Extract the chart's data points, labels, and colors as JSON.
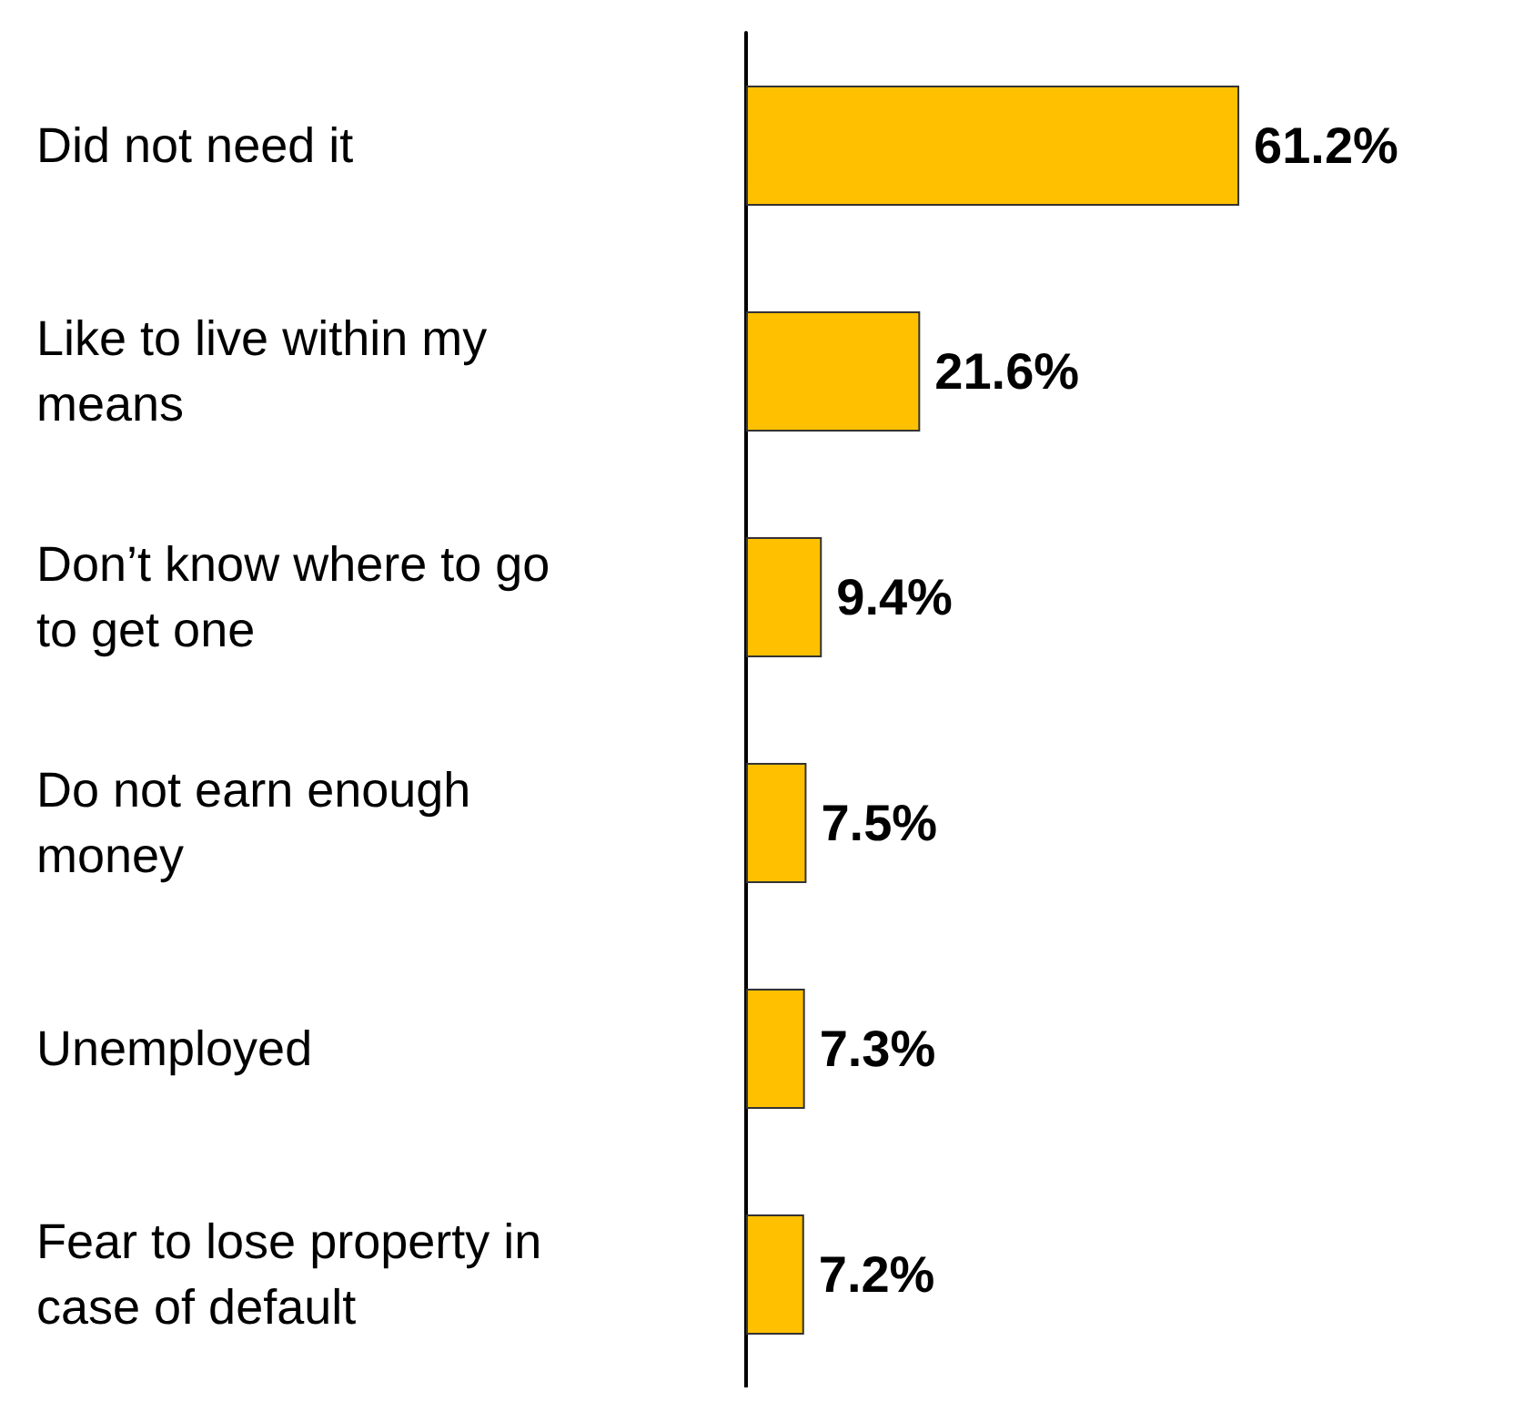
{
  "chart_data": {
    "type": "bar",
    "orientation": "horizontal",
    "categories": [
      "Did not need it",
      "Like to live within my means",
      "Don’t know where to go to get one",
      "Do not earn enough money",
      "Unemployed",
      "Fear to lose property in case of default"
    ],
    "values": [
      61.2,
      21.6,
      9.4,
      7.5,
      7.3,
      7.2
    ],
    "value_labels": [
      "61.2%",
      "21.6%",
      "9.4%",
      "7.5%",
      "7.3%",
      "7.2%"
    ],
    "color": "#ffc000",
    "tick_labels": "y"
  }
}
